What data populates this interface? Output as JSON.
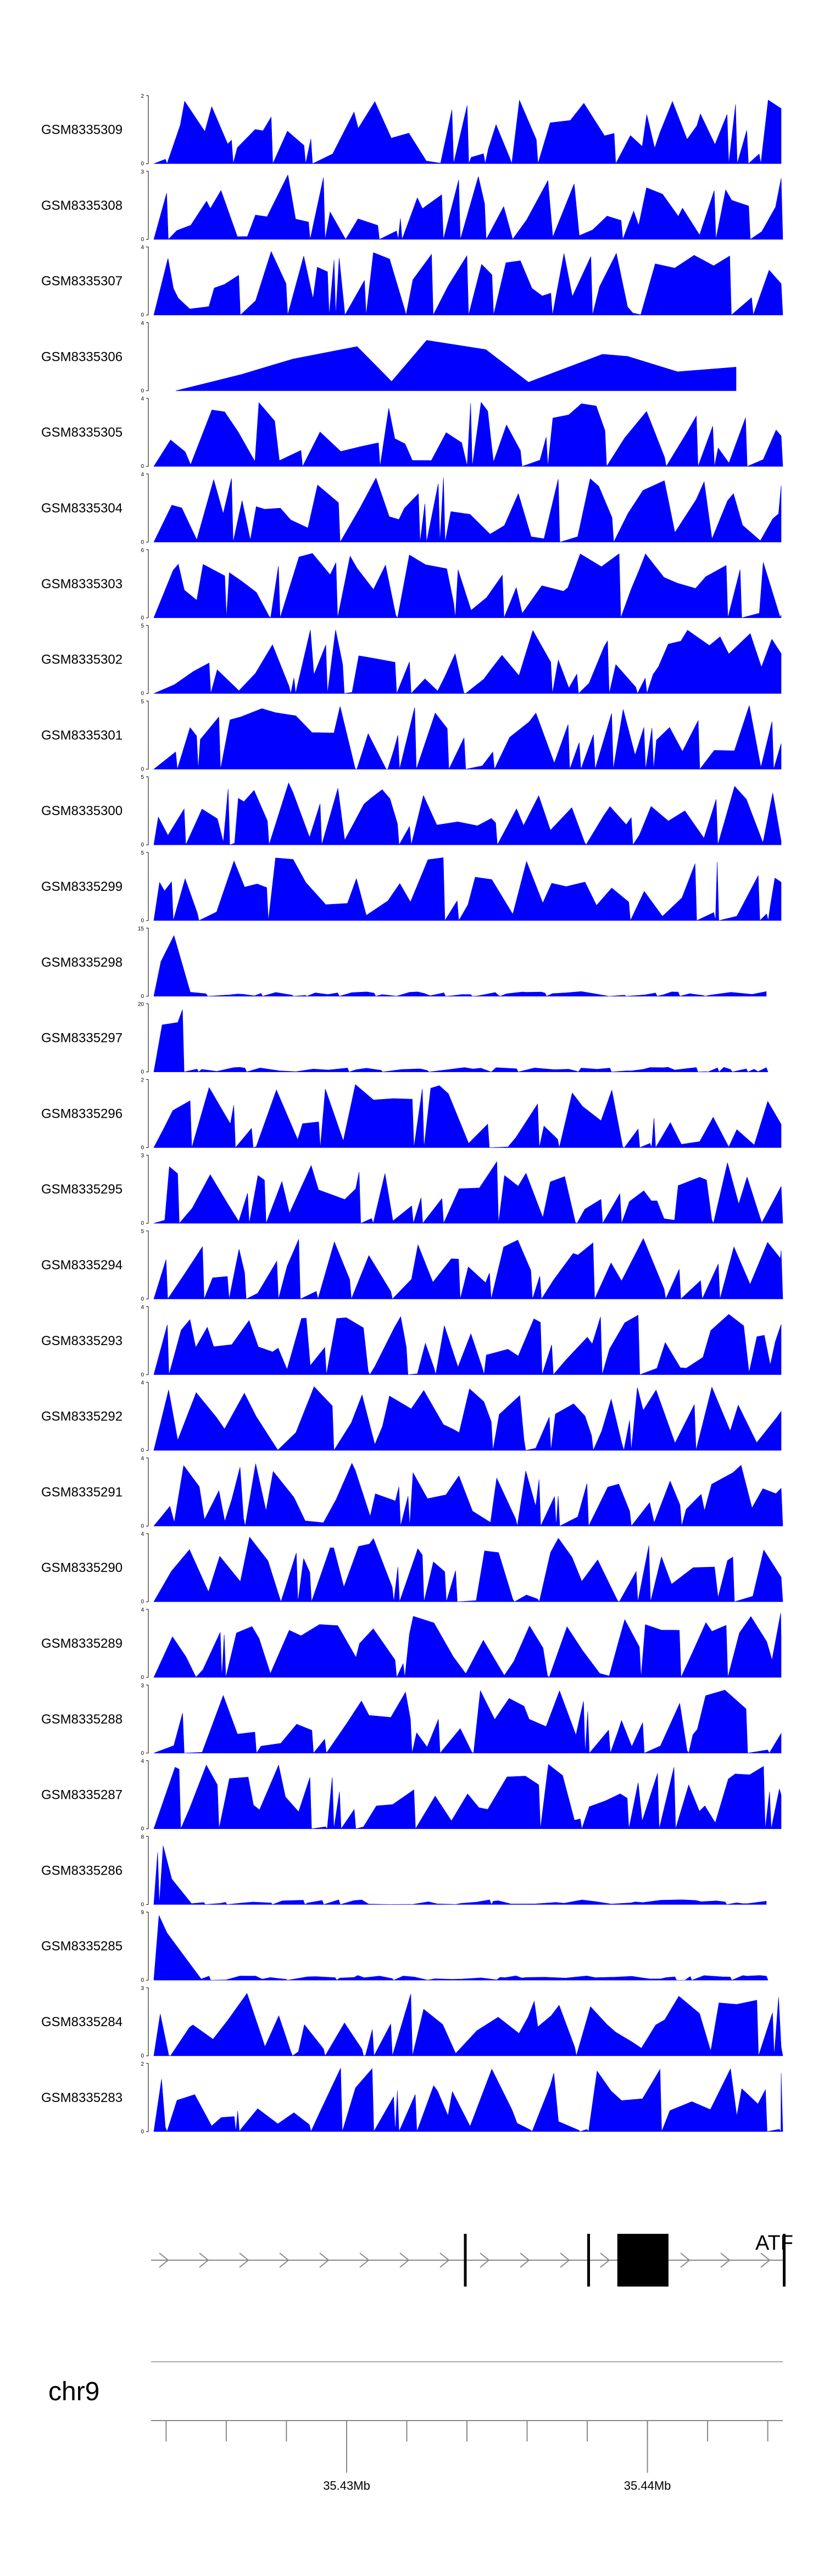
{
  "colors": {
    "coverage_fill": "#0000ff",
    "gene": "#000000",
    "axis": "#888888"
  },
  "chart_data": {
    "type": "area",
    "title": "",
    "xlabel": "",
    "ylabel": "",
    "xlim": [
      35.4235,
      35.4445
    ],
    "tracks": [
      {
        "name": "GSM8335309",
        "ymax": 2,
        "yticks": [
          "2",
          "0"
        ]
      },
      {
        "name": "GSM8335308",
        "ymax": 3,
        "yticks": [
          "3",
          "0"
        ]
      },
      {
        "name": "GSM8335307",
        "ymax": 4,
        "yticks": [
          "4",
          "0"
        ]
      },
      {
        "name": "GSM8335306",
        "ymax": 4,
        "yticks": [
          "4",
          "0"
        ]
      },
      {
        "name": "GSM8335305",
        "ymax": 4,
        "yticks": [
          "4",
          "0"
        ]
      },
      {
        "name": "GSM8335304",
        "ymax": 4,
        "yticks": [
          "4",
          "0"
        ]
      },
      {
        "name": "GSM8335303",
        "ymax": 6,
        "yticks": [
          "6",
          "0"
        ]
      },
      {
        "name": "GSM8335302",
        "ymax": 5,
        "yticks": [
          "5",
          "0"
        ]
      },
      {
        "name": "GSM8335301",
        "ymax": 5,
        "yticks": [
          "5",
          "0"
        ]
      },
      {
        "name": "GSM8335300",
        "ymax": 5,
        "yticks": [
          "5",
          "0"
        ]
      },
      {
        "name": "GSM8335299",
        "ymax": 5,
        "yticks": [
          "5",
          "0"
        ]
      },
      {
        "name": "GSM8335298",
        "ymax": 15,
        "yticks": [
          "15",
          "0"
        ]
      },
      {
        "name": "GSM8335297",
        "ymax": 20,
        "yticks": [
          "20",
          "0"
        ]
      },
      {
        "name": "GSM8335296",
        "ymax": 2,
        "yticks": [
          "2",
          "0"
        ]
      },
      {
        "name": "GSM8335295",
        "ymax": 3,
        "yticks": [
          "3",
          "0"
        ]
      },
      {
        "name": "GSM8335294",
        "ymax": 5,
        "yticks": [
          "5",
          "0"
        ]
      },
      {
        "name": "GSM8335293",
        "ymax": 4,
        "yticks": [
          "4",
          "0"
        ]
      },
      {
        "name": "GSM8335292",
        "ymax": 4,
        "yticks": [
          "4",
          "0"
        ]
      },
      {
        "name": "GSM8335291",
        "ymax": 4,
        "yticks": [
          "4",
          "0"
        ]
      },
      {
        "name": "GSM8335290",
        "ymax": 4,
        "yticks": [
          "4",
          "0"
        ]
      },
      {
        "name": "GSM8335289",
        "ymax": 4,
        "yticks": [
          "4",
          "0"
        ]
      },
      {
        "name": "GSM8335288",
        "ymax": 3,
        "yticks": [
          "3",
          "0"
        ]
      },
      {
        "name": "GSM8335287",
        "ymax": 4,
        "yticks": [
          "4",
          "0"
        ]
      },
      {
        "name": "GSM8335286",
        "ymax": 8,
        "yticks": [
          "8",
          "0"
        ]
      },
      {
        "name": "GSM8335285",
        "ymax": 9,
        "yticks": [
          "9",
          "0"
        ]
      },
      {
        "name": "GSM8335284",
        "ymax": 3,
        "yticks": [
          "3",
          "0"
        ]
      },
      {
        "name": "GSM8335283",
        "ymax": 2,
        "yticks": [
          "2",
          "0"
        ]
      }
    ],
    "gene": {
      "label": "ATF",
      "strand": "+",
      "exons": [
        [
          35.4339,
          35.4341
        ],
        [
          35.438,
          35.4382
        ],
        [
          35.439,
          35.4407
        ],
        [
          35.4445,
          35.4446
        ]
      ]
    },
    "axis": {
      "chromosome": "chr9",
      "unit": "Mb",
      "labeled_ticks": [
        {
          "value": 35.43,
          "label": "35.43Mb"
        },
        {
          "value": 35.44,
          "label": "35.44Mb"
        }
      ],
      "minor_tick_step": 0.002
    }
  }
}
